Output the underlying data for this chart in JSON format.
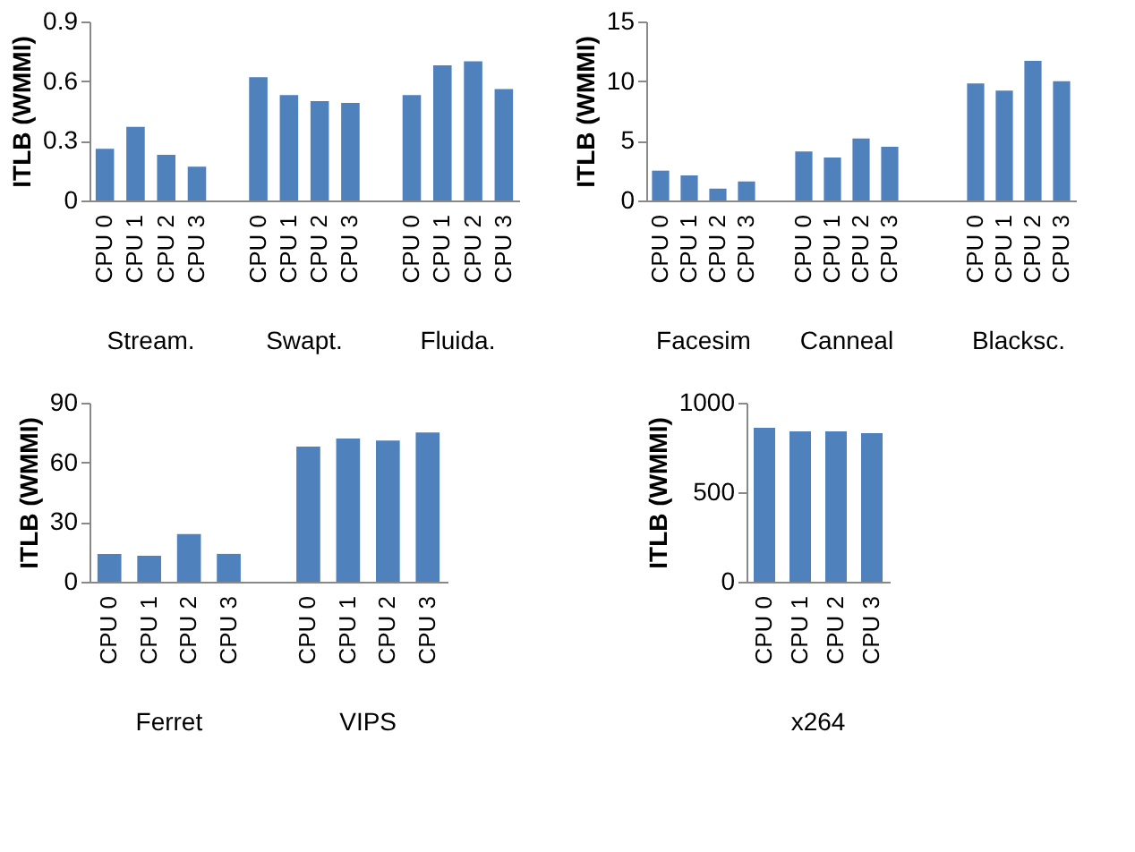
{
  "chart_data": [
    {
      "type": "bar",
      "ylabel": "ITLB (WMMI)",
      "categories": [
        "CPU 0",
        "CPU 1",
        "CPU 2",
        "CPU 3",
        null,
        "CPU 0",
        "CPU 1",
        "CPU 2",
        "CPU 3",
        null,
        "CPU 0",
        "CPU 1",
        "CPU 2",
        "CPU 3"
      ],
      "values": [
        0.26,
        0.37,
        0.23,
        0.17,
        null,
        0.62,
        0.53,
        0.5,
        0.49,
        null,
        0.53,
        0.68,
        0.7,
        0.56
      ],
      "color": "#4f81bd",
      "ylim": [
        0,
        0.9
      ],
      "yticks": [
        0,
        0.3,
        0.6,
        0.9
      ],
      "annotations": [
        "Stream.",
        "Swapt.",
        "Fluida."
      ]
    },
    {
      "type": "bar",
      "ylabel": "ITLB (WMMI)",
      "categories": [
        "CPU 0",
        "CPU 1",
        "CPU 2",
        "CPU 3",
        null,
        "CPU 0",
        "CPU 1",
        "CPU 2",
        "CPU 3",
        null,
        null,
        "CPU 0",
        "CPU 1",
        "CPU 2",
        "CPU 3"
      ],
      "values": [
        2.5,
        2.1,
        1.0,
        1.6,
        null,
        4.1,
        3.6,
        5.2,
        4.5,
        null,
        null,
        9.8,
        9.2,
        11.7,
        10.0
      ],
      "color": "#4f81bd",
      "ylim": [
        0,
        15
      ],
      "yticks": [
        0,
        5,
        10,
        15
      ],
      "annotations": [
        "Facesim",
        "Canneal",
        "Blacksc."
      ]
    },
    {
      "type": "bar",
      "ylabel": "ITLB (WMMI)",
      "categories": [
        "CPU 0",
        "CPU 1",
        "CPU 2",
        "CPU 3",
        null,
        "CPU 0",
        "CPU 1",
        "CPU 2",
        "CPU 3"
      ],
      "values": [
        14,
        13,
        24,
        14,
        null,
        68,
        72,
        71,
        75
      ],
      "color": "#4f81bd",
      "ylim": [
        0,
        90
      ],
      "yticks": [
        0,
        30,
        60,
        90
      ],
      "annotations": [
        "Ferret",
        "VIPS"
      ]
    },
    {
      "type": "bar",
      "ylabel": "ITLB (WMMI)",
      "categories": [
        "CPU 0",
        "CPU 1",
        "CPU 2",
        "CPU 3"
      ],
      "values": [
        860,
        840,
        840,
        830
      ],
      "color": "#4f81bd",
      "ylim": [
        0,
        1000
      ],
      "yticks": [
        0,
        500,
        1000
      ],
      "annotations": [
        "x264"
      ]
    }
  ]
}
